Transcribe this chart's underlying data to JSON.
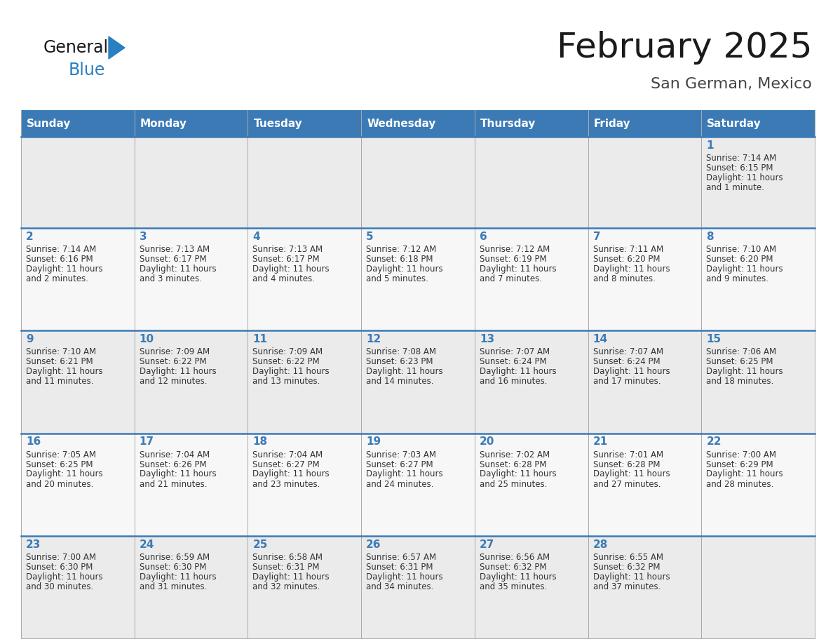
{
  "title": "February 2025",
  "subtitle": "San German, Mexico",
  "header_bg_color": "#3c7ab5",
  "header_text_color": "#ffffff",
  "cell_bg_row0": "#ebebeb",
  "cell_bg_row1": "#f7f7f7",
  "cell_bg_row2": "#ebebeb",
  "cell_bg_row3": "#f7f7f7",
  "cell_bg_row4": "#ebebeb",
  "day_headers": [
    "Sunday",
    "Monday",
    "Tuesday",
    "Wednesday",
    "Thursday",
    "Friday",
    "Saturday"
  ],
  "title_color": "#1a1a1a",
  "subtitle_color": "#444444",
  "day_num_color": "#3c7ab5",
  "cell_text_color": "#333333",
  "row_border_color": "#3c7ab5",
  "col_border_color": "#aaaaaa",
  "background_color": "#ffffff",
  "calendar_data": [
    [
      null,
      null,
      null,
      null,
      null,
      null,
      1
    ],
    [
      2,
      3,
      4,
      5,
      6,
      7,
      8
    ],
    [
      9,
      10,
      11,
      12,
      13,
      14,
      15
    ],
    [
      16,
      17,
      18,
      19,
      20,
      21,
      22
    ],
    [
      23,
      24,
      25,
      26,
      27,
      28,
      null
    ]
  ],
  "cell_info": {
    "1": {
      "sunrise": "7:14 AM",
      "sunset": "6:15 PM",
      "daylight": "11 hours and 1 minute."
    },
    "2": {
      "sunrise": "7:14 AM",
      "sunset": "6:16 PM",
      "daylight": "11 hours and 2 minutes."
    },
    "3": {
      "sunrise": "7:13 AM",
      "sunset": "6:17 PM",
      "daylight": "11 hours and 3 minutes."
    },
    "4": {
      "sunrise": "7:13 AM",
      "sunset": "6:17 PM",
      "daylight": "11 hours and 4 minutes."
    },
    "5": {
      "sunrise": "7:12 AM",
      "sunset": "6:18 PM",
      "daylight": "11 hours and 5 minutes."
    },
    "6": {
      "sunrise": "7:12 AM",
      "sunset": "6:19 PM",
      "daylight": "11 hours and 7 minutes."
    },
    "7": {
      "sunrise": "7:11 AM",
      "sunset": "6:20 PM",
      "daylight": "11 hours and 8 minutes."
    },
    "8": {
      "sunrise": "7:10 AM",
      "sunset": "6:20 PM",
      "daylight": "11 hours and 9 minutes."
    },
    "9": {
      "sunrise": "7:10 AM",
      "sunset": "6:21 PM",
      "daylight": "11 hours and 11 minutes."
    },
    "10": {
      "sunrise": "7:09 AM",
      "sunset": "6:22 PM",
      "daylight": "11 hours and 12 minutes."
    },
    "11": {
      "sunrise": "7:09 AM",
      "sunset": "6:22 PM",
      "daylight": "11 hours and 13 minutes."
    },
    "12": {
      "sunrise": "7:08 AM",
      "sunset": "6:23 PM",
      "daylight": "11 hours and 14 minutes."
    },
    "13": {
      "sunrise": "7:07 AM",
      "sunset": "6:24 PM",
      "daylight": "11 hours and 16 minutes."
    },
    "14": {
      "sunrise": "7:07 AM",
      "sunset": "6:24 PM",
      "daylight": "11 hours and 17 minutes."
    },
    "15": {
      "sunrise": "7:06 AM",
      "sunset": "6:25 PM",
      "daylight": "11 hours and 18 minutes."
    },
    "16": {
      "sunrise": "7:05 AM",
      "sunset": "6:25 PM",
      "daylight": "11 hours and 20 minutes."
    },
    "17": {
      "sunrise": "7:04 AM",
      "sunset": "6:26 PM",
      "daylight": "11 hours and 21 minutes."
    },
    "18": {
      "sunrise": "7:04 AM",
      "sunset": "6:27 PM",
      "daylight": "11 hours and 23 minutes."
    },
    "19": {
      "sunrise": "7:03 AM",
      "sunset": "6:27 PM",
      "daylight": "11 hours and 24 minutes."
    },
    "20": {
      "sunrise": "7:02 AM",
      "sunset": "6:28 PM",
      "daylight": "11 hours and 25 minutes."
    },
    "21": {
      "sunrise": "7:01 AM",
      "sunset": "6:28 PM",
      "daylight": "11 hours and 27 minutes."
    },
    "22": {
      "sunrise": "7:00 AM",
      "sunset": "6:29 PM",
      "daylight": "11 hours and 28 minutes."
    },
    "23": {
      "sunrise": "7:00 AM",
      "sunset": "6:30 PM",
      "daylight": "11 hours and 30 minutes."
    },
    "24": {
      "sunrise": "6:59 AM",
      "sunset": "6:30 PM",
      "daylight": "11 hours and 31 minutes."
    },
    "25": {
      "sunrise": "6:58 AM",
      "sunset": "6:31 PM",
      "daylight": "11 hours and 32 minutes."
    },
    "26": {
      "sunrise": "6:57 AM",
      "sunset": "6:31 PM",
      "daylight": "11 hours and 34 minutes."
    },
    "27": {
      "sunrise": "6:56 AM",
      "sunset": "6:32 PM",
      "daylight": "11 hours and 35 minutes."
    },
    "28": {
      "sunrise": "6:55 AM",
      "sunset": "6:32 PM",
      "daylight": "11 hours and 37 minutes."
    }
  }
}
